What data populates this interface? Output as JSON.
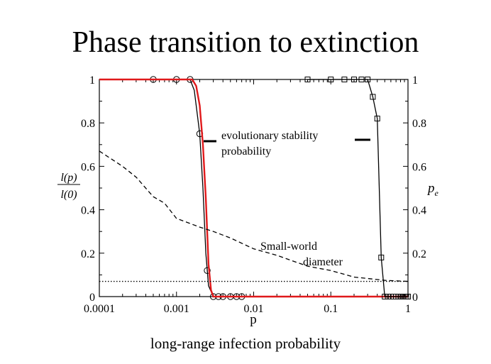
{
  "title": "Phase transition to extinction",
  "caption": "long-range infection probability",
  "chart_data": {
    "type": "line",
    "xlabel": "p",
    "x_scale": "log",
    "xlim": [
      0.0001,
      1
    ],
    "x_tick_labels": [
      "0.0001",
      "0.001",
      "0.01",
      "0.1",
      "1"
    ],
    "x_ticks": [
      0.0001,
      0.001,
      0.01,
      0.1,
      1
    ],
    "ylim": [
      0,
      1
    ],
    "y_ticks": [
      0,
      0.2,
      0.4,
      0.6,
      0.8,
      1
    ],
    "y_tick_labels": [
      "0",
      "0.2",
      "0.4",
      "0.6",
      "0.8",
      "1"
    ],
    "ylabel_left": {
      "numerator": "l(p)",
      "denominator": "l(0)"
    },
    "ylabel_right": {
      "base": "p",
      "subscript": "e"
    },
    "annotations": {
      "stability_line1": "evolutionary stability",
      "stability_line2": "probability",
      "sw_line1": "Small-world",
      "sw_line2": "diameter"
    },
    "colors": {
      "fit": "#e0191b",
      "series": "#000000"
    },
    "series": [
      {
        "id": "lp_circles",
        "style": "solid",
        "marker": "circle",
        "x": [
          0.0005,
          0.001,
          0.0015,
          0.002,
          0.0025,
          0.003,
          0.0035,
          0.004,
          0.005,
          0.006,
          0.007
        ],
        "y": [
          1.0,
          1.0,
          1.0,
          0.75,
          0.12,
          0.0,
          0.0,
          0.0,
          0.0,
          0.0,
          0.0
        ],
        "curve_x": [
          0.0001,
          0.0015,
          0.0017,
          0.002,
          0.0022,
          0.0024,
          0.0026,
          0.003,
          0.01,
          1
        ],
        "curve_y": [
          1.0,
          1.0,
          0.95,
          0.75,
          0.5,
          0.2,
          0.05,
          0.0,
          0.0,
          0.0
        ]
      },
      {
        "id": "lp_fit",
        "style": "solid",
        "marker": "none",
        "x": [
          0.0001,
          0.0016,
          0.0018,
          0.002,
          0.0022,
          0.0024,
          0.0026,
          0.0028,
          0.003,
          0.01,
          1
        ],
        "y": [
          1.0,
          1.0,
          0.97,
          0.88,
          0.7,
          0.45,
          0.15,
          0.03,
          0.0,
          0.0,
          0.0
        ]
      },
      {
        "id": "pe_squares",
        "style": "solid",
        "marker": "square",
        "x": [
          0.05,
          0.1,
          0.15,
          0.2,
          0.25,
          0.3,
          0.35,
          0.4,
          0.45,
          0.5,
          0.55,
          0.6,
          0.65,
          0.7,
          0.75,
          0.8,
          0.85,
          0.9,
          0.95,
          1.0
        ],
        "y": [
          1.0,
          1.0,
          1.0,
          1.0,
          1.0,
          1.0,
          0.92,
          0.82,
          0.18,
          0.0,
          0.0,
          0.0,
          0.0,
          0.0,
          0.0,
          0.0,
          0.0,
          0.0,
          0.0,
          0.0
        ],
        "curve_x": [
          0.05,
          0.3,
          0.35,
          0.4,
          0.45,
          0.5,
          1.0
        ],
        "curve_y": [
          1.0,
          1.0,
          0.92,
          0.82,
          0.18,
          0.0,
          0.0
        ]
      },
      {
        "id": "small_world_diameter",
        "style": "dashed",
        "marker": "none",
        "x": [
          0.0001,
          0.0002,
          0.0003,
          0.0005,
          0.0007,
          0.001,
          0.002,
          0.003,
          0.005,
          0.01,
          0.02,
          0.05,
          0.1,
          0.2,
          0.5,
          1
        ],
        "y": [
          0.67,
          0.6,
          0.55,
          0.46,
          0.43,
          0.36,
          0.32,
          0.3,
          0.27,
          0.22,
          0.19,
          0.14,
          0.12,
          0.09,
          0.075,
          0.07
        ]
      },
      {
        "id": "baseline",
        "style": "dotted",
        "marker": "none",
        "x": [
          0.0001,
          1
        ],
        "y": [
          0.07,
          0.07
        ]
      }
    ]
  }
}
